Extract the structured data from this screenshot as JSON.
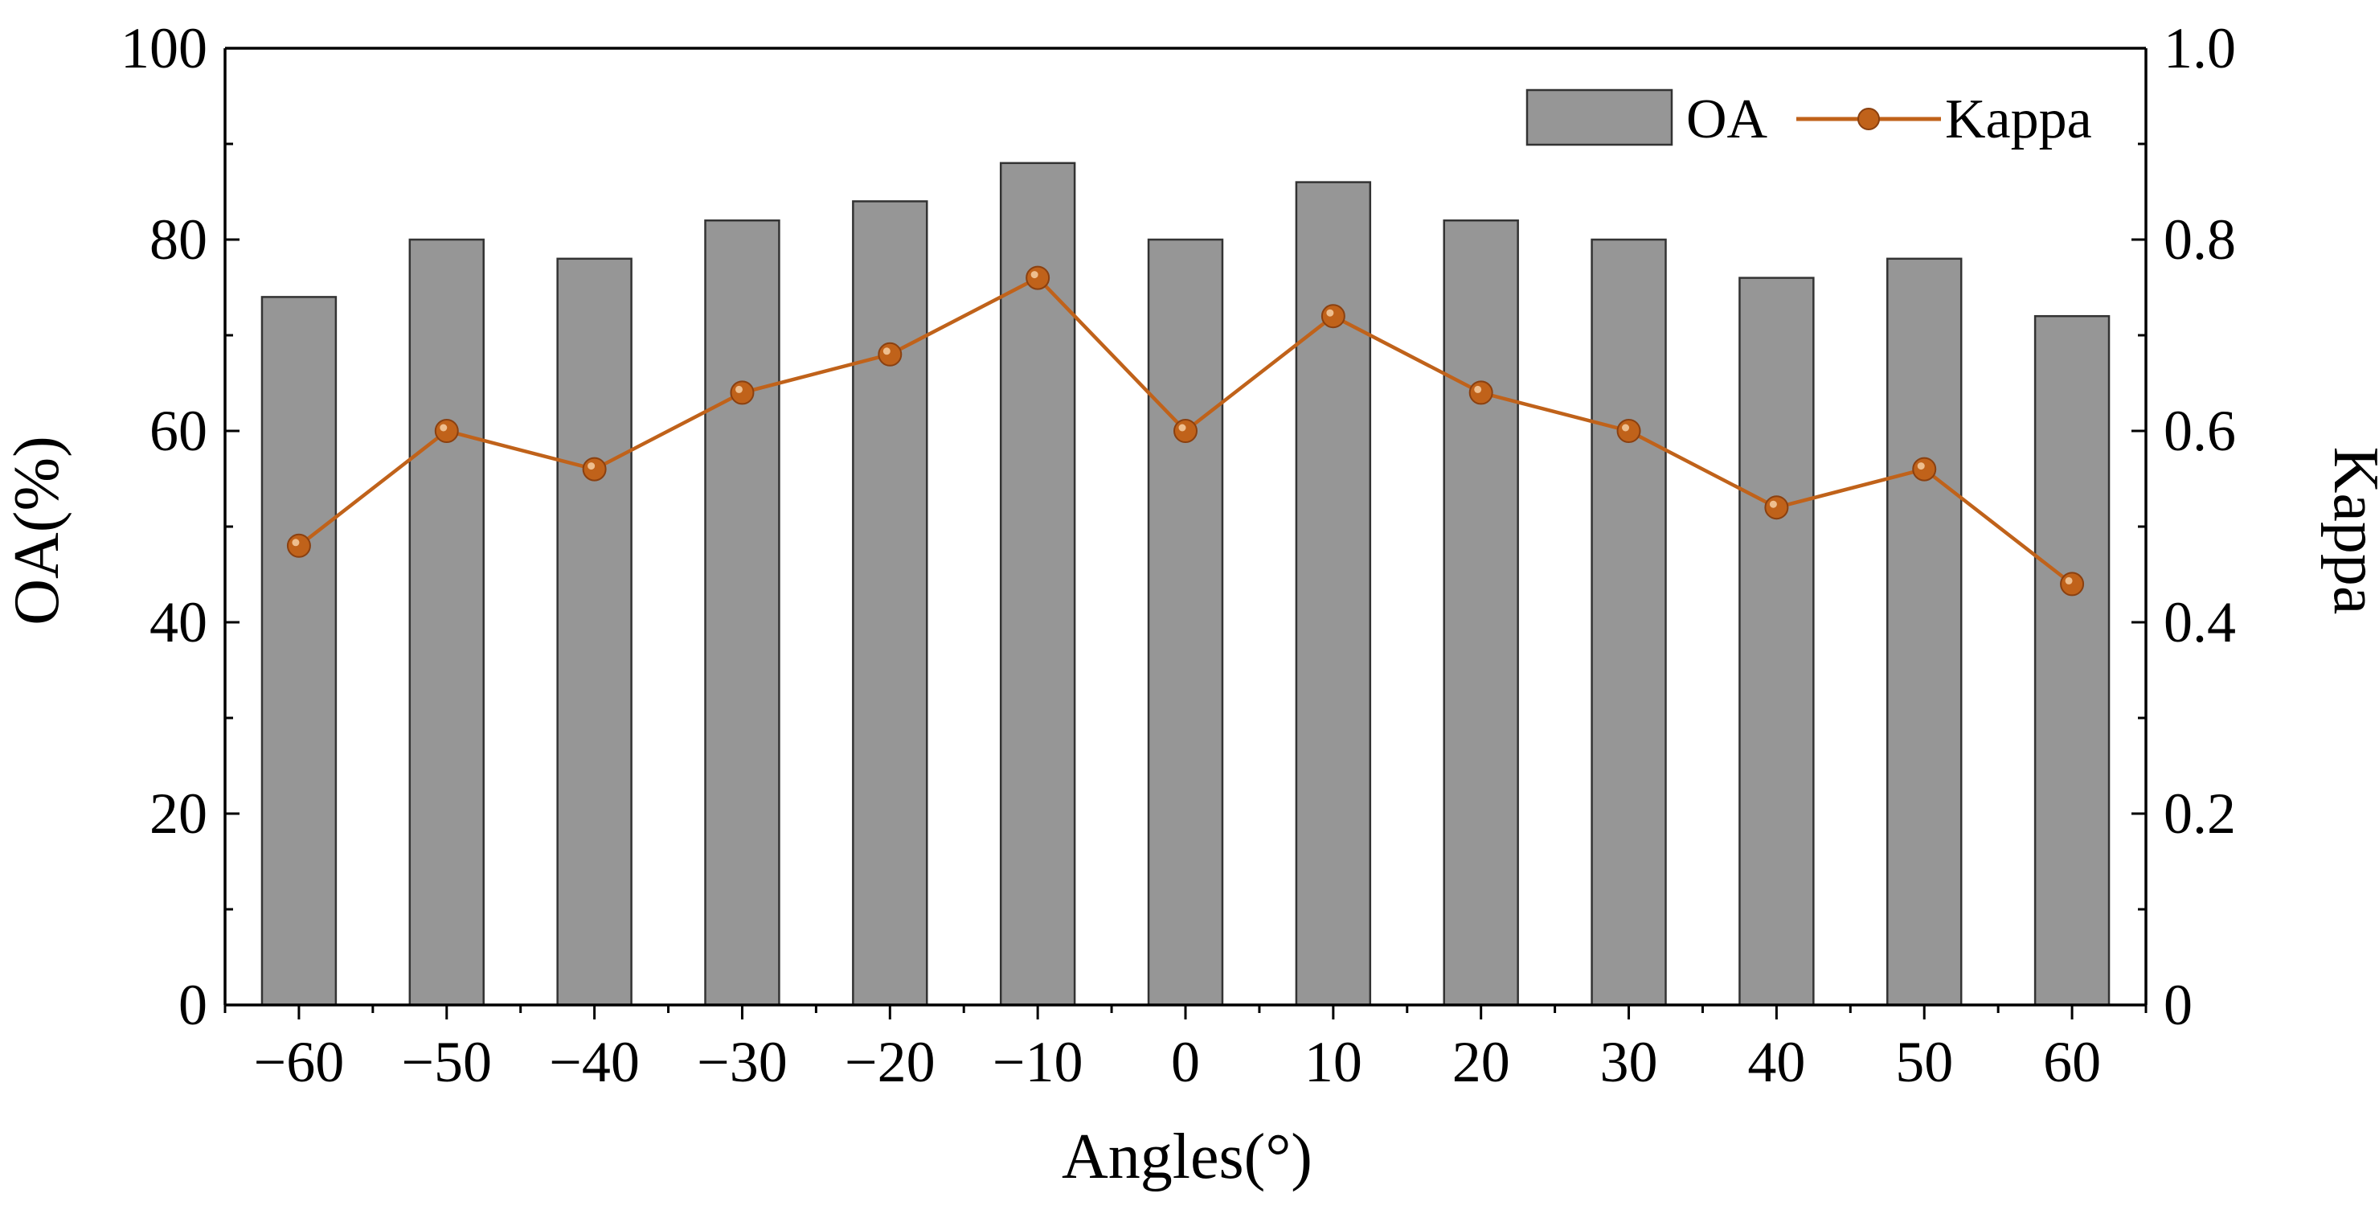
{
  "chart_data": {
    "type": "bar+line",
    "title": "",
    "xlabel": "Angles(°)",
    "ylabel_left": "OA(%)",
    "ylabel_right": "Kappa",
    "categories": [
      "−60",
      "−50",
      "−40",
      "−30",
      "−20",
      "−10",
      "0",
      "10",
      "20",
      "30",
      "40",
      "50",
      "60"
    ],
    "left_axis": {
      "min": 0,
      "max": 100,
      "major_ticks": [
        0,
        20,
        40,
        60,
        80,
        100
      ],
      "tick_labels": [
        "0",
        "20",
        "40",
        "60",
        "80",
        "100"
      ]
    },
    "right_axis": {
      "min": 0,
      "max": 1.0,
      "major_ticks": [
        0,
        0.2,
        0.4,
        0.6,
        0.8,
        1.0
      ],
      "tick_labels": [
        "0",
        "0.2",
        "0.4",
        "0.6",
        "0.8",
        "1.0"
      ]
    },
    "series": [
      {
        "name": "OA",
        "kind": "bar",
        "axis": "left",
        "color": "#969696",
        "values": [
          74,
          80,
          78,
          82,
          84,
          88,
          80,
          86,
          82,
          80,
          76,
          78,
          72
        ]
      },
      {
        "name": "Kappa",
        "kind": "line",
        "axis": "right",
        "color": "#C0621A",
        "values": [
          0.48,
          0.6,
          0.56,
          0.64,
          0.68,
          0.76,
          0.6,
          0.72,
          0.64,
          0.6,
          0.52,
          0.56,
          0.44
        ]
      }
    ],
    "legend": {
      "position": "top-right",
      "entries": [
        "OA",
        "Kappa"
      ]
    },
    "grid": false
  }
}
